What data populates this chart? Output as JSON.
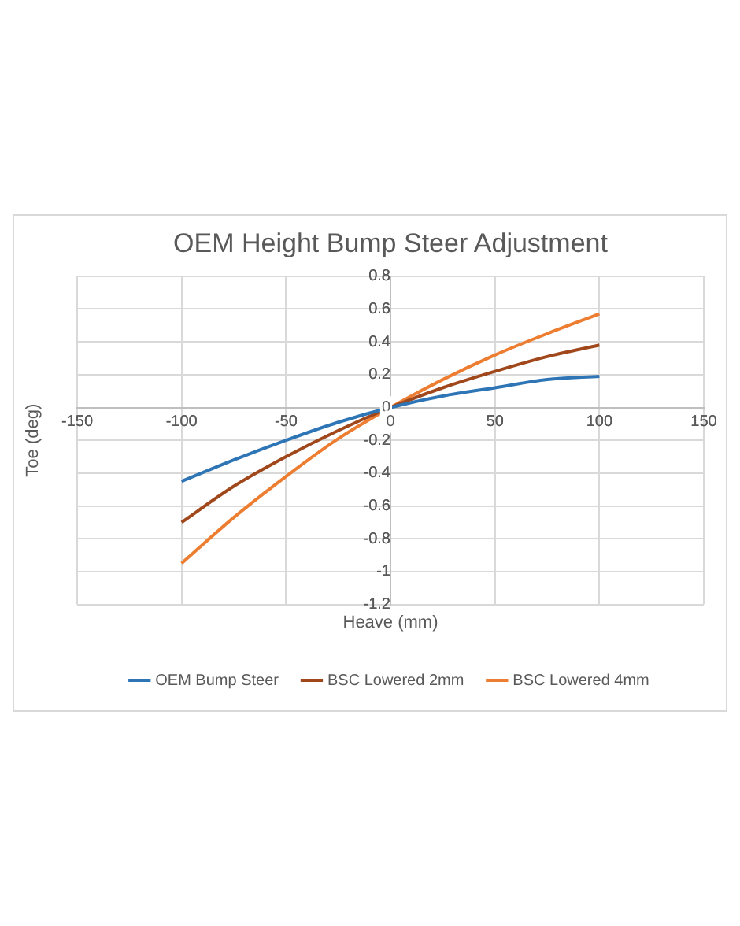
{
  "chart_data": {
    "type": "line",
    "title": "OEM Height Bump Steer Adjustment",
    "xlabel": "Heave (mm)",
    "ylabel": "Toe (deg)",
    "x": [
      -100,
      -75,
      -50,
      -25,
      0,
      25,
      50,
      75,
      100
    ],
    "series": [
      {
        "name": "OEM Bump Steer",
        "color": "#2e75b6",
        "values": [
          -0.45,
          -0.32,
          -0.2,
          -0.09,
          0,
          0.07,
          0.12,
          0.17,
          0.19
        ]
      },
      {
        "name": "BSC Lowered 2mm",
        "color": "#a0481c",
        "values": [
          -0.7,
          -0.48,
          -0.3,
          -0.14,
          0,
          0.12,
          0.22,
          0.31,
          0.38
        ]
      },
      {
        "name": "BSC Lowered 4mm",
        "color": "#ed7d31",
        "values": [
          -0.95,
          -0.67,
          -0.42,
          -0.19,
          0,
          0.17,
          0.32,
          0.45,
          0.57
        ]
      }
    ],
    "xlim": [
      -150,
      150
    ],
    "xticks": [
      -150,
      -100,
      -50,
      0,
      50,
      100,
      150
    ],
    "ylim": [
      -1.2,
      0.8
    ],
    "yticks": [
      -1.2,
      -1,
      -0.8,
      -0.6,
      -0.4,
      -0.2,
      0,
      0.2,
      0.4,
      0.6,
      0.8
    ],
    "grid": true,
    "legend": "bottom",
    "marker": "none",
    "line_style": "solid"
  }
}
